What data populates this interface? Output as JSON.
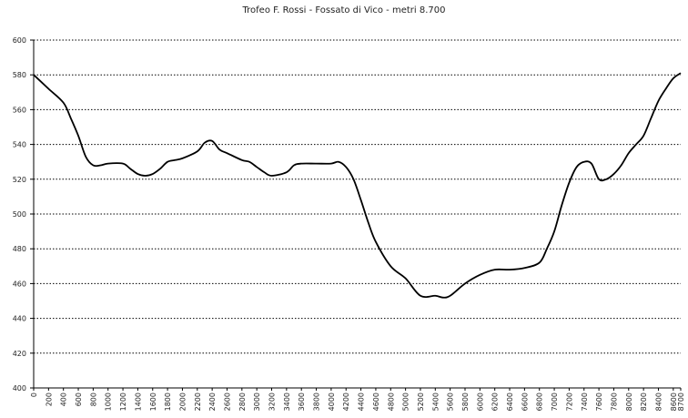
{
  "chart_data": {
    "type": "line",
    "title": "Trofeo F. Rossi - Fossato di Vico - metri 8.700",
    "xlabel": "",
    "ylabel": "",
    "ylim": [
      400,
      600
    ],
    "xlim": [
      0,
      8700
    ],
    "yticks": [
      "400",
      "420",
      "440",
      "460",
      "480",
      "500",
      "520",
      "540",
      "560",
      "580",
      "600"
    ],
    "xticks": [
      "0",
      "200",
      "400",
      "600",
      "800",
      "1000",
      "1200",
      "1400",
      "1600",
      "1800",
      "2000",
      "2200",
      "2400",
      "2600",
      "2800",
      "3000",
      "3200",
      "3400",
      "3600",
      "3800",
      "4000",
      "4200",
      "4400",
      "4600",
      "4800",
      "5000",
      "5200",
      "5400",
      "5600",
      "5800",
      "6000",
      "6200",
      "6400",
      "6600",
      "6800",
      "7000",
      "7200",
      "7400",
      "7600",
      "7800",
      "8000",
      "8200",
      "8400",
      "8600",
      "8700"
    ],
    "grid": "horizontal-dotted",
    "series": [
      {
        "color": "#000000",
        "x": [
          0,
          200,
          400,
          500,
          600,
          700,
          800,
          900,
          1000,
          1200,
          1300,
          1400,
          1500,
          1600,
          1700,
          1800,
          1900,
          2000,
          2200,
          2300,
          2400,
          2500,
          2600,
          2800,
          2900,
          3000,
          3100,
          3200,
          3400,
          3500,
          3600,
          3800,
          4000,
          4100,
          4200,
          4300,
          4400,
          4500,
          4600,
          4800,
          5000,
          5200,
          5400,
          5500,
          5600,
          5800,
          6000,
          6200,
          6400,
          6600,
          6800,
          6900,
          7000,
          7100,
          7200,
          7300,
          7400,
          7500,
          7600,
          7700,
          7800,
          7900,
          8000,
          8100,
          8200,
          8300,
          8400,
          8500,
          8600,
          8700
        ],
        "y": [
          580,
          572,
          564,
          555,
          545,
          533,
          528,
          528,
          529,
          529,
          526,
          523,
          522,
          523,
          526,
          530,
          531,
          532,
          536,
          541,
          542,
          537,
          535,
          531,
          530,
          527,
          524,
          522,
          524,
          528,
          529,
          529,
          529,
          530,
          527,
          520,
          508,
          495,
          484,
          470,
          463,
          453,
          453,
          452,
          453,
          460,
          465,
          468,
          468,
          469,
          472,
          480,
          490,
          505,
          518,
          527,
          530,
          529,
          520,
          520,
          523,
          528,
          535,
          540,
          545,
          555,
          565,
          572,
          578,
          581
        ]
      }
    ]
  }
}
